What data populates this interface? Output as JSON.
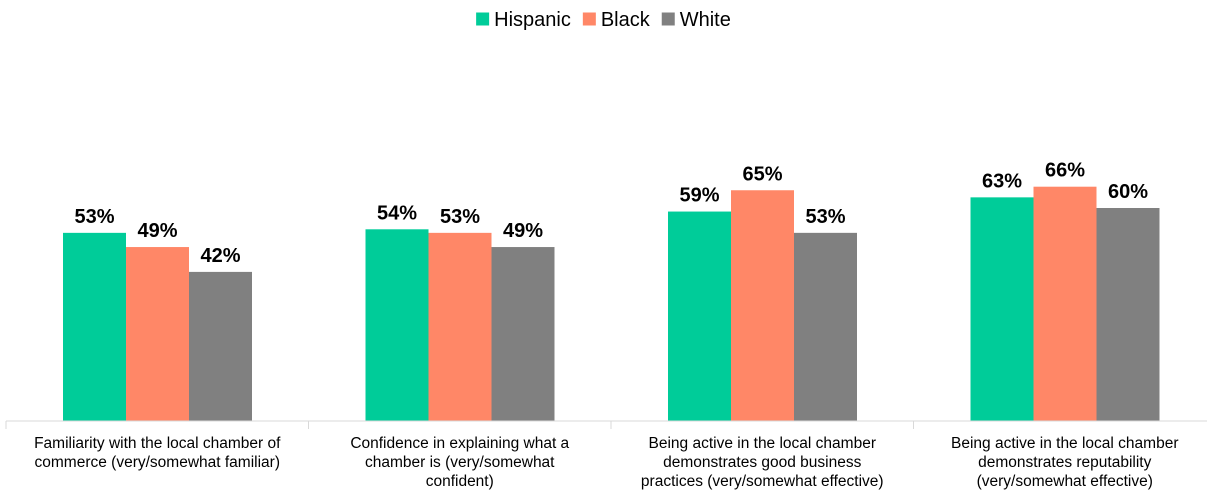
{
  "chart_data": {
    "type": "bar",
    "categories": [
      [
        "Familiarity with the local chamber of",
        "commerce (very/somewhat familiar)"
      ],
      [
        "Confidence in explaining what a",
        "chamber is (very/somewhat",
        "confident)"
      ],
      [
        "Being active in the local chamber",
        "demonstrates good business",
        "practices (very/somewhat effective)"
      ],
      [
        "Being active in the local chamber",
        "demonstrates reputability",
        "(very/somewhat effective)"
      ]
    ],
    "series": [
      {
        "name": "Hispanic",
        "color": "#00CC99",
        "values": [
          53,
          54,
          59,
          63
        ],
        "labels": [
          "53%",
          "54%",
          "59%",
          "63%"
        ]
      },
      {
        "name": "Black",
        "color": "#FF8767",
        "values": [
          49,
          53,
          65,
          66
        ],
        "labels": [
          "49%",
          "53%",
          "65%",
          "66%"
        ]
      },
      {
        "name": "White",
        "color": "#808080",
        "values": [
          42,
          49,
          53,
          60
        ],
        "labels": [
          "42%",
          "49%",
          "53%",
          "60%"
        ]
      }
    ],
    "legend_position": "top-center",
    "ylim": [
      0,
      100
    ],
    "grid": false
  }
}
